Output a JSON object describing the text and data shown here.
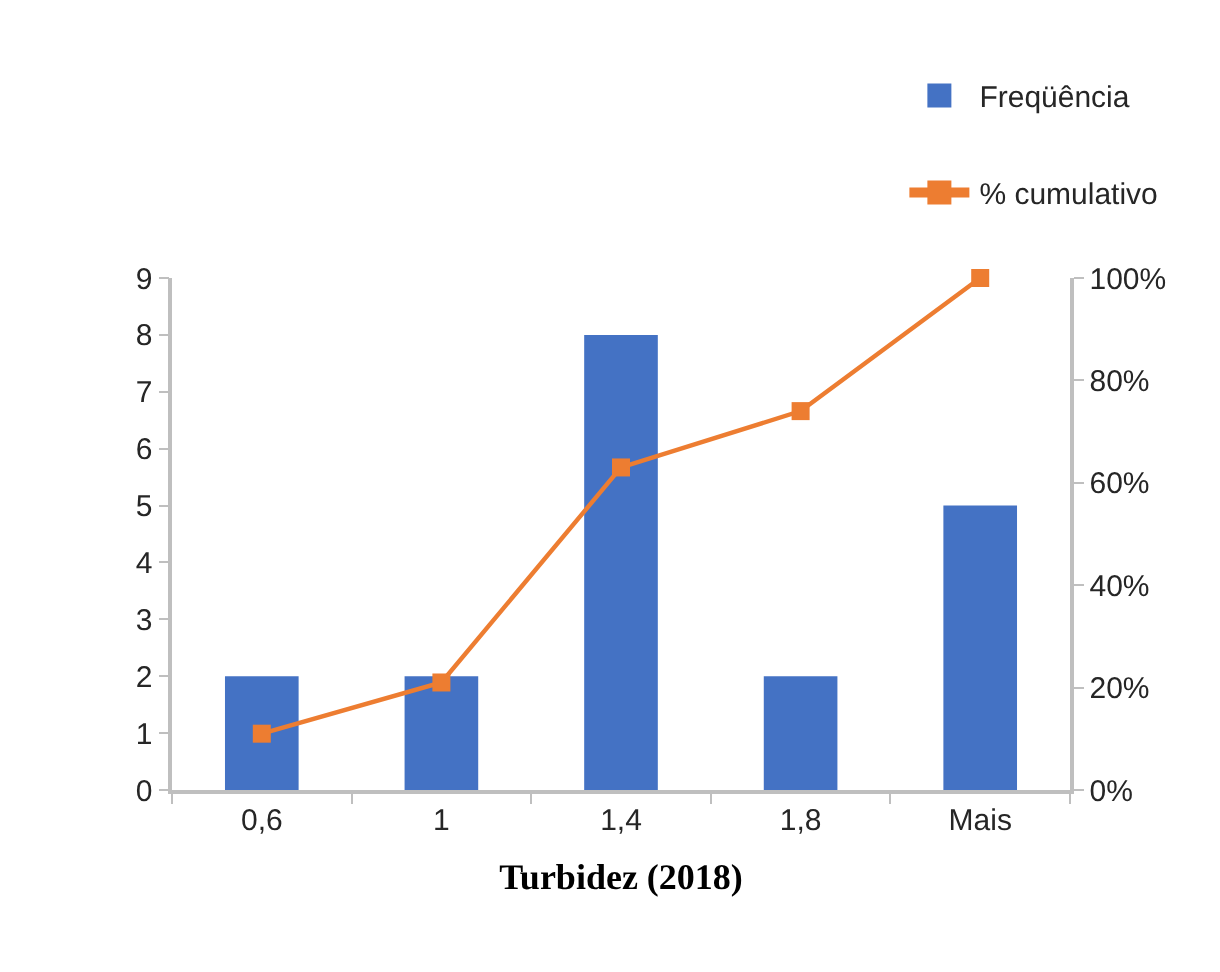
{
  "chart_data": {
    "type": "bar",
    "xlabel": "Turbidez (2018)",
    "categories": [
      "0,6",
      "1",
      "1,4",
      "1,8",
      "Mais"
    ],
    "series": [
      {
        "name": "Freqüência",
        "color": "#4472c4",
        "values": [
          2,
          2,
          8,
          2,
          5
        ]
      },
      {
        "name": "% cumulativo",
        "type": "line",
        "axis": "y2",
        "color": "#ed7d31",
        "values": [
          11,
          21,
          63,
          74,
          100
        ]
      }
    ],
    "ylim": [
      0,
      9
    ],
    "yticks": [
      0,
      1,
      2,
      3,
      4,
      5,
      6,
      7,
      8,
      9
    ],
    "y2lim": [
      0,
      100
    ],
    "y2ticks": [
      {
        "value": 0,
        "label": "0%"
      },
      {
        "value": 20,
        "label": "20%"
      },
      {
        "value": 40,
        "label": "40%"
      },
      {
        "value": 60,
        "label": "60%"
      },
      {
        "value": 80,
        "label": "80%"
      },
      {
        "value": 100,
        "label": "100%"
      }
    ],
    "legend": "top right",
    "grid": false,
    "marker": "square",
    "line_style": "solid"
  }
}
